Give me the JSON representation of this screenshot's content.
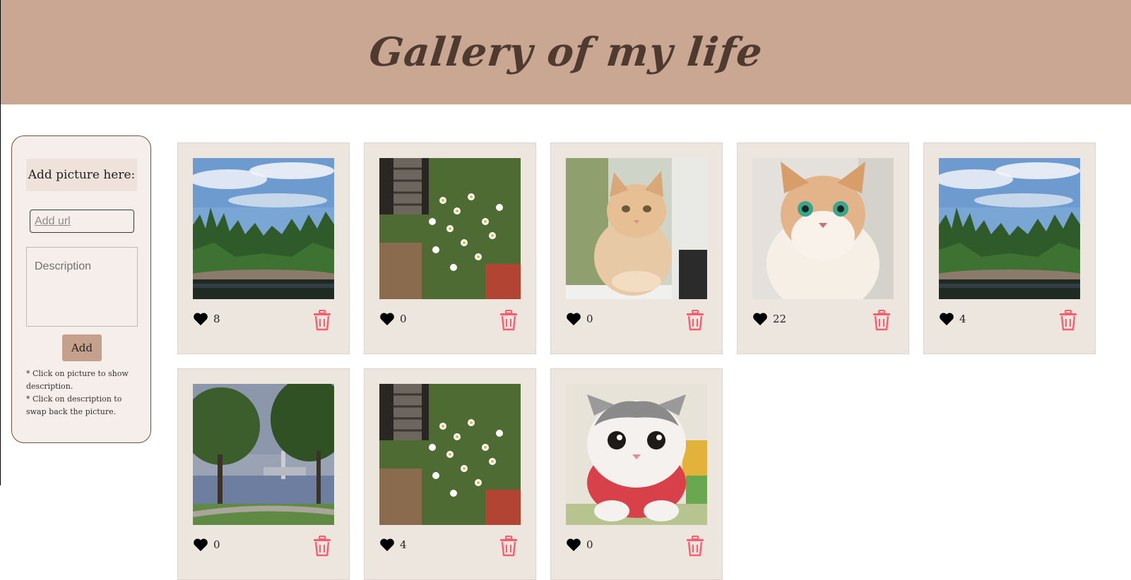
{
  "header": {
    "title": "Gallery of my life"
  },
  "sidebar": {
    "add_title": "Add picture here:",
    "url_placeholder": "Add url",
    "description_placeholder": "Description",
    "add_button_label": "Add",
    "hints": [
      "* Click on picture to show description.",
      "* Click on description to swap back the picture."
    ]
  },
  "cards": [
    {
      "picture": "river-forest-landscape",
      "likes": "8"
    },
    {
      "picture": "white-daisies-garden",
      "likes": "0"
    },
    {
      "picture": "ginger-cat-by-window",
      "likes": "0"
    },
    {
      "picture": "fluffy-cat-green-eyes",
      "likes": "22"
    },
    {
      "picture": "river-forest-landscape",
      "likes": "4"
    },
    {
      "picture": "riverside-trees",
      "likes": "0"
    },
    {
      "picture": "white-daisies-garden",
      "likes": "4"
    },
    {
      "picture": "grey-white-kitten",
      "likes": "0"
    }
  ],
  "colors": {
    "header_bg": "#caa792",
    "title": "#4e3a2f",
    "sidebar_bg": "#f5eeea",
    "card_bg": "#ede6df",
    "add_button": "#c5a08c",
    "heart": "#000000",
    "trash": "#ff5c6e"
  },
  "icons": {
    "like": "heart-icon",
    "delete": "trash-icon"
  }
}
